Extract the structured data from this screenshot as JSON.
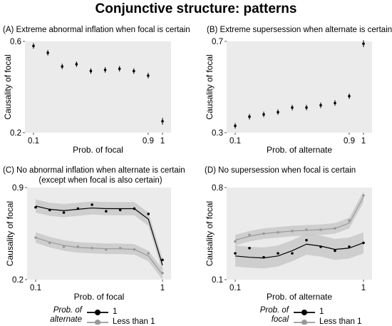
{
  "title": "Conjunctive structure: patterns",
  "chart_data": [
    {
      "id": "A",
      "type": "scatter",
      "title": "(A) Extreme abnormal inflation when focal is certain",
      "xlabel": "Prob. of focal",
      "ylabel": "Causality of focal",
      "xlim": [
        0.1,
        1
      ],
      "ylim": [
        0.2,
        0.6
      ],
      "x_ticks": [
        "0.1",
        "0.9",
        "1"
      ],
      "y_ticks": [
        "0.2",
        "0.6"
      ],
      "grid": false,
      "series": [
        {
          "x": [
            0.1,
            0.2,
            0.3,
            0.4,
            0.5,
            0.6,
            0.7,
            0.8,
            0.9,
            1.0
          ],
          "y": [
            0.58,
            0.55,
            0.49,
            0.5,
            0.47,
            0.475,
            0.48,
            0.47,
            0.45,
            0.25
          ],
          "err": [
            0.012,
            0.012,
            0.012,
            0.012,
            0.012,
            0.012,
            0.012,
            0.012,
            0.012,
            0.015
          ]
        }
      ]
    },
    {
      "id": "B",
      "type": "scatter",
      "title": "(B) Extreme supersession when alternate is certain",
      "xlabel": "Prob. of alternate",
      "ylabel": "Causality of focal",
      "xlim": [
        0.1,
        1
      ],
      "ylim": [
        0.3,
        0.7
      ],
      "x_ticks": [
        "0.1",
        "0.9",
        "1"
      ],
      "y_ticks": [
        "0.3",
        "0.7"
      ],
      "grid": false,
      "series": [
        {
          "x": [
            0.1,
            0.2,
            0.3,
            0.4,
            0.5,
            0.6,
            0.7,
            0.8,
            0.9,
            1.0
          ],
          "y": [
            0.33,
            0.37,
            0.38,
            0.39,
            0.41,
            0.41,
            0.42,
            0.43,
            0.46,
            0.69
          ],
          "err": [
            0.012,
            0.012,
            0.012,
            0.012,
            0.012,
            0.012,
            0.012,
            0.012,
            0.012,
            0.015
          ]
        }
      ]
    },
    {
      "id": "C",
      "type": "line",
      "title": "(C) No abnormal inflation when alternate is certain",
      "subtitle": "(except when focal is also certain)",
      "xlabel": "Prob. of focal",
      "ylabel": "Causality of focal",
      "xlim": [
        0.1,
        1
      ],
      "ylim": [
        0.2,
        0.9
      ],
      "x_ticks": [
        "0.1",
        "1"
      ],
      "y_ticks": [
        "0.2",
        "0.9"
      ],
      "grid": false,
      "series": [
        {
          "name": "1",
          "color": "#000000",
          "x": [
            0.1,
            0.2,
            0.3,
            0.4,
            0.5,
            0.6,
            0.7,
            0.8,
            0.9,
            1.0
          ],
          "points": [
            0.75,
            0.73,
            0.71,
            0.74,
            0.77,
            0.72,
            0.73,
            0.74,
            0.7,
            0.35
          ],
          "fit": [
            0.76,
            0.735,
            0.725,
            0.735,
            0.745,
            0.74,
            0.74,
            0.74,
            0.66,
            0.31
          ],
          "band": 0.05
        },
        {
          "name": "Less than 1",
          "color": "#999999",
          "x": [
            0.1,
            0.2,
            0.3,
            0.4,
            0.5,
            0.6,
            0.7,
            0.8,
            0.9,
            1.0
          ],
          "points": [
            0.52,
            0.48,
            0.45,
            0.45,
            0.44,
            0.43,
            0.44,
            0.43,
            0.4,
            0.25
          ],
          "fit": [
            0.52,
            0.485,
            0.46,
            0.445,
            0.44,
            0.435,
            0.435,
            0.43,
            0.38,
            0.24
          ],
          "band": 0.04
        }
      ]
    },
    {
      "id": "D",
      "type": "line",
      "title": "(D) No supersession when focal is certain",
      "xlabel": "Prob. of alternate",
      "ylabel": "Causality of focal",
      "xlim": [
        0.1,
        1
      ],
      "ylim": [
        0.1,
        0.8
      ],
      "x_ticks": [
        "0.1",
        "1"
      ],
      "y_ticks": [
        "0.1",
        "0.8"
      ],
      "grid": false,
      "series": [
        {
          "name": "1",
          "color": "#000000",
          "x": [
            0.1,
            0.2,
            0.3,
            0.4,
            0.5,
            0.6,
            0.7,
            0.8,
            0.9,
            1.0
          ],
          "points": [
            0.3,
            0.34,
            0.27,
            0.3,
            0.3,
            0.4,
            0.35,
            0.32,
            0.35,
            0.38
          ],
          "fit": [
            0.28,
            0.27,
            0.265,
            0.28,
            0.32,
            0.37,
            0.355,
            0.33,
            0.34,
            0.38
          ],
          "band": 0.08
        },
        {
          "name": "Less than 1",
          "color": "#999999",
          "x": [
            0.1,
            0.2,
            0.3,
            0.4,
            0.5,
            0.6,
            0.7,
            0.8,
            0.9,
            1.0
          ],
          "points": [
            0.39,
            0.44,
            0.45,
            0.46,
            0.47,
            0.48,
            0.48,
            0.49,
            0.55,
            0.74
          ],
          "fit": [
            0.4,
            0.43,
            0.45,
            0.46,
            0.47,
            0.475,
            0.48,
            0.49,
            0.53,
            0.73
          ],
          "band": 0.04
        }
      ]
    }
  ],
  "legends": {
    "left": {
      "title_line1": "Prob. of",
      "title_line2": "alternate",
      "items": [
        "1",
        "Less than 1"
      ]
    },
    "right": {
      "title_line1": "Prob. of",
      "title_line2": "focal",
      "items": [
        "1",
        "Less than 1"
      ]
    }
  }
}
